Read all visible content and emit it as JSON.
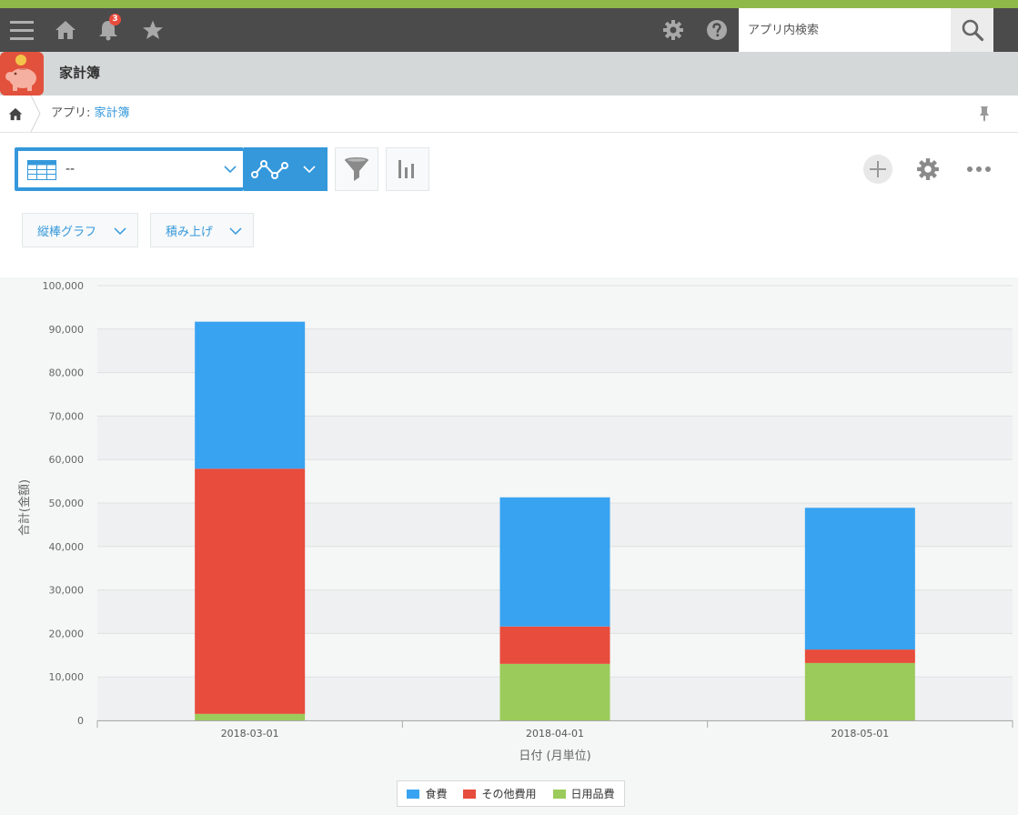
{
  "topbar": {
    "notification_count": "3",
    "search_placeholder": "アプリ内検索"
  },
  "app": {
    "title": "家計簿"
  },
  "breadcrumb": {
    "prefix": "アプリ: ",
    "link": "家計簿"
  },
  "toolbar": {
    "view_value": "--"
  },
  "options": {
    "chart_type_label": "縦棒グラフ",
    "stack_label": "積み上げ"
  },
  "colors": {
    "accent": "#3498db",
    "food": "#38a3f1",
    "other": "#e74c3c",
    "daily": "#9bcb5b",
    "topstripe": "#8fba4a"
  },
  "chart_data": {
    "type": "bar",
    "stacked": true,
    "categories": [
      "2018-03-01",
      "2018-04-01",
      "2018-05-01"
    ],
    "series": [
      {
        "name": "日用品費",
        "values": [
          1500,
          13000,
          13200
        ],
        "color": "#9bcb5b"
      },
      {
        "name": "その他費用",
        "values": [
          56400,
          8600,
          3100
        ],
        "color": "#e74c3c"
      },
      {
        "name": "食費",
        "values": [
          33800,
          29700,
          32600
        ],
        "color": "#38a3f1"
      }
    ],
    "legend_order": [
      "食費",
      "その他費用",
      "日用品費"
    ],
    "xlabel": "日付 (月単位)",
    "ylabel": "合計(金額)",
    "ylim": [
      0,
      100000
    ],
    "yticks": [
      0,
      10000,
      20000,
      30000,
      40000,
      50000,
      60000,
      70000,
      80000,
      90000,
      100000
    ],
    "ytick_labels": [
      "0",
      "10,000",
      "20,000",
      "30,000",
      "40,000",
      "50,000",
      "60,000",
      "70,000",
      "80,000",
      "90,000",
      "100,000"
    ],
    "legend_position": "bottom",
    "grid": true
  }
}
